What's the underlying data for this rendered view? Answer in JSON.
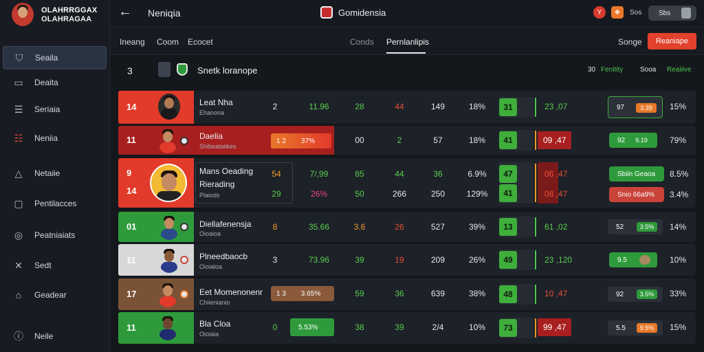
{
  "brand": {
    "line1": "OLAHRRGGAX",
    "line2": "OLAHRAGAA"
  },
  "sidebar": {
    "items": [
      {
        "label": "Seaila",
        "icon": "shield-icon"
      },
      {
        "label": "Deaita",
        "icon": "card-icon"
      },
      {
        "label": "Seriaia",
        "icon": "list-icon"
      },
      {
        "label": "Neniia",
        "icon": "grid-icon"
      },
      {
        "label": "Netaiie",
        "icon": "triangle-icon"
      },
      {
        "label": "Pentilacces",
        "icon": "document-icon"
      },
      {
        "label": "Peatniaiats",
        "icon": "globe-icon"
      },
      {
        "label": "Sedt",
        "icon": "tools-icon"
      },
      {
        "label": "Geadear",
        "icon": "trash-icon"
      },
      {
        "label": "Neile",
        "icon": "info-icon"
      }
    ]
  },
  "header": {
    "title": "Neniqia",
    "center_title": "Gomidensia",
    "badge1": "Y",
    "badge2": "❖",
    "count": "Sos",
    "user": "Sbs"
  },
  "subbar": {
    "tabs": [
      "Ineang",
      "Coom",
      "Ecocet"
    ],
    "center_tabs": [
      "Conds",
      "Pernlanlipis"
    ],
    "sort_label": "Songe",
    "primary_label": "Reaniape"
  },
  "section": {
    "num": "3",
    "title": "Snetk loranope",
    "right_num": "30",
    "right_a": "Fenitity",
    "right_b": "Sooa",
    "right_c": "Reaiiive"
  },
  "rows": [
    {
      "rank": "14",
      "name": "Leat Nha",
      "sub": "Ehanona",
      "c1": "2",
      "c2": "11.96",
      "c3": "28",
      "c4": "44",
      "c5": "149",
      "c6": "18%",
      "box": "31",
      "score": "23 ,07",
      "pill": "97",
      "pill_inner": "3.39",
      "pct": "15%"
    },
    {
      "rank": "11",
      "name": "Daelia",
      "sub": "Shibeataiikes",
      "chip_a": "1 2",
      "chip_b": "37%",
      "c3": "00",
      "c4": "2",
      "c5": "57",
      "c6": "18%",
      "box": "41",
      "score": "09 ,47",
      "pill": "92",
      "pill_inner": "9.19",
      "pct": "79%"
    },
    {
      "rank_a": "9",
      "rank_b": "14",
      "name": "Mans Oeading",
      "name2": "Rierading",
      "sub": "Plaiods",
      "sa": "54",
      "sb": "29",
      "c2a": "7/,99",
      "c2b": "26%",
      "c3a": "85",
      "c3b": "50",
      "c4a": "44",
      "c4b": "266",
      "c5a": "36",
      "c5b": "250",
      "c6a": "6.9%",
      "c6b": "129%",
      "boxa": "47",
      "boxb": "41",
      "scorea": "06 ,47",
      "scoreb": "08 ,47",
      "pilla": "Sbiin Geaoa",
      "pillb": "Snio 66a9%",
      "pcta": "8.5%",
      "pctb": "3.4%"
    },
    {
      "rank": "01",
      "name": "Diellafenensja",
      "sub": "Oioaioa",
      "c1": "8",
      "c2": "35.66",
      "c3": "3.6",
      "c4": "26",
      "c5": "527",
      "c6": "39%",
      "box": "13",
      "score": "61 ,02",
      "pill": "52",
      "pill_inner": "3.5%",
      "pct": "14%"
    },
    {
      "rank": "11",
      "name": "Plneedbaocb",
      "sub": "Oioialoa",
      "c1": "3",
      "c2": "73.96",
      "c3": "39",
      "c4": "19",
      "c5": "209",
      "c6": "26%",
      "box": "49",
      "score": "23 ,120",
      "pill": "9.5",
      "pill_inner": "",
      "pct": "10%"
    },
    {
      "rank": "17",
      "name": "Eet Momenonenr",
      "sub": "Chiienianio",
      "chip_a": "1 3",
      "chip_b": "3.65%",
      "c3": "59",
      "c4": "36",
      "c5": "639",
      "c6": "38%",
      "box": "48",
      "score": "10 ,47",
      "pill": "92",
      "pill_inner": "3.5%",
      "pct": "33%"
    },
    {
      "rank": "11",
      "name": "Bla Cloa",
      "sub": "Oioiaia",
      "c1": "0",
      "c2": "5.53%",
      "c3": "38",
      "c4": "39",
      "c5": "2/4",
      "c6": "10%",
      "box": "73",
      "score": "99 ,47",
      "pill": "5.5",
      "pill_inner": "9.5%",
      "pct": "15%"
    }
  ],
  "colors": {
    "accent": "#e2412c",
    "green": "#2f9a3b",
    "red": "#e23a2b",
    "dark": "#8a5a3a"
  }
}
